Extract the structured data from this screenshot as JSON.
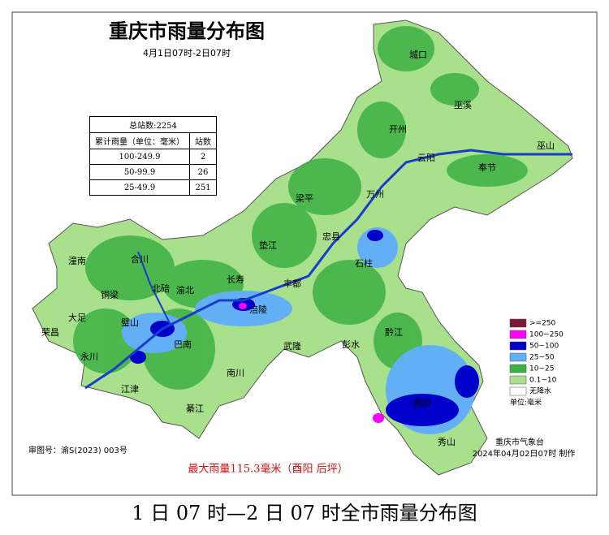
{
  "title": "重庆市雨量分布图",
  "subtitle": "4月1日07时-2日07时",
  "table": {
    "caption": "总站数:2254",
    "header": [
      "累计雨量（单位：毫米）",
      "站数"
    ],
    "rows": [
      [
        "100-249.9",
        2
      ],
      [
        "50-99.9",
        26
      ],
      [
        "25-49.9",
        251
      ]
    ]
  },
  "districts": [
    "城口",
    "巫溪",
    "开州",
    "云阳",
    "巫山",
    "奉节",
    "梁平",
    "万州",
    "忠县",
    "垫江",
    "石柱",
    "长寿",
    "丰都",
    "涪陵",
    "潼南",
    "合川",
    "铜梁",
    "北碚",
    "渝北",
    "大足",
    "璧山",
    "荣昌",
    "永川",
    "巴南",
    "武隆",
    "彭水",
    "黔江",
    "南川",
    "江津",
    "綦江",
    "酉阳",
    "秀山"
  ],
  "legend": {
    "items": [
      {
        "label": ">=250",
        "color": "#7a1a3a"
      },
      {
        "label": "100~250",
        "color": "#ff00ff"
      },
      {
        "label": "50~100",
        "color": "#0000cc"
      },
      {
        "label": "25~50",
        "color": "#63aff5"
      },
      {
        "label": "10~25",
        "color": "#3cb043"
      },
      {
        "label": "0.1~10",
        "color": "#a8e08c"
      },
      {
        "label": "无降水",
        "color": "#ffffff"
      }
    ],
    "unit": "单位:毫米"
  },
  "footer": {
    "map_number": "审图号：渝S(2023) 003号",
    "max_rain": "最大雨量115.3毫米（酉阳 后坪）",
    "agency": "重庆市气象台",
    "issued": "2024年04月02日07时 制作"
  },
  "caption": "1 日 07 时—2 日 07 时全市雨量分布图"
}
